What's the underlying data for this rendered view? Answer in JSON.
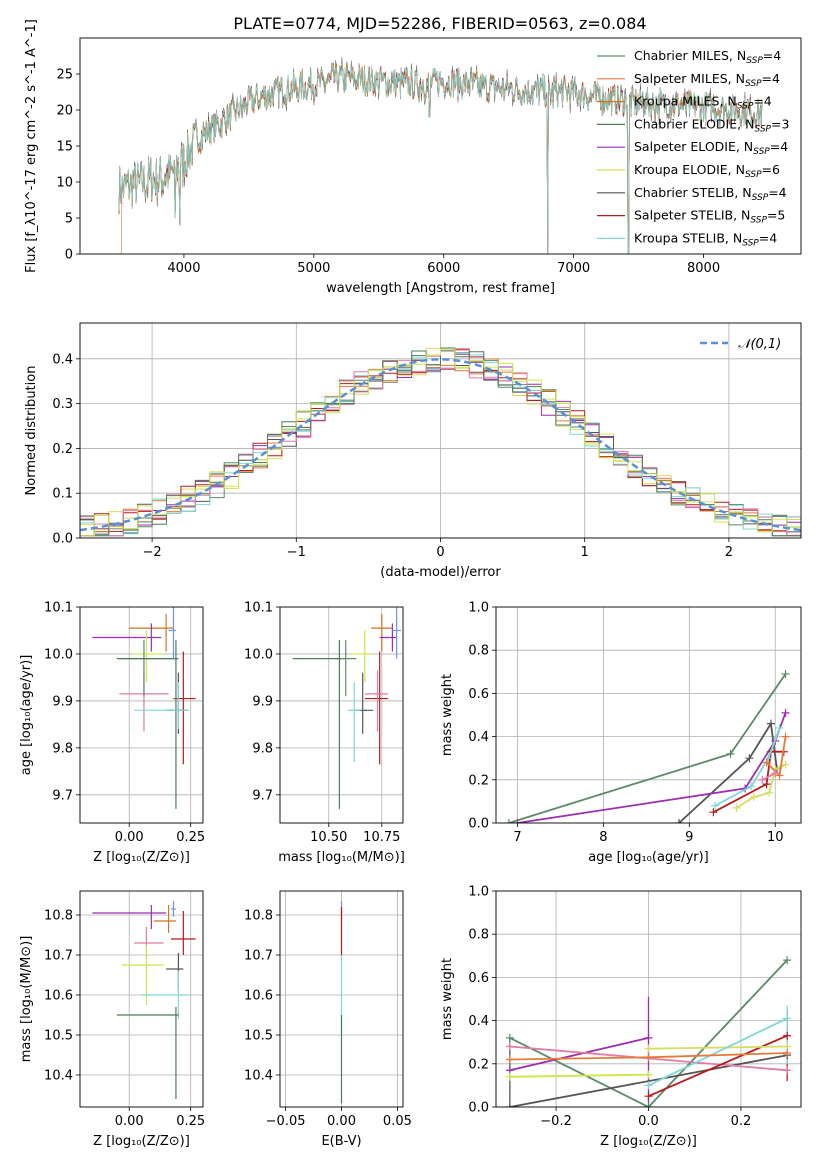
{
  "title": "PLATE=0774, MJD=52286, FIBERID=0563, z=0.084",
  "colors": [
    "#5b8a66",
    "#e57a38",
    "#d1731f",
    "#4e7c59",
    "#9b2fae",
    "#d8dd5f",
    "#555555",
    "#b51c1c",
    "#7fd7d7",
    "#e27aa5",
    "#6f93ea",
    "#c9e84a"
  ],
  "chart_data": [
    {
      "panel": "spectrum",
      "type": "line",
      "xlabel": "wavelength [Angstrom, rest frame]",
      "ylabel": "Flux [f_λ10^-17 erg cm^-2 s^-1 A^-1]",
      "xlim": [
        3200,
        8750
      ],
      "ylim": [
        0,
        30
      ],
      "xticks": [
        "4000",
        "5000",
        "6000",
        "7000",
        "8000"
      ],
      "yticks": [
        "0",
        "5",
        "10",
        "15",
        "20",
        "25"
      ],
      "legend_loc": "upper-right",
      "legend": [
        {
          "label": "Chabrier MILES, N",
          "n": "=4",
          "color": "#5b8a66"
        },
        {
          "label": "Salpeter MILES, N",
          "n": "=4",
          "color": "#e57a38"
        },
        {
          "label": "Kroupa MILES, N",
          "n": "=4",
          "color": "#d1731f"
        },
        {
          "label": "Chabrier ELODIE, N",
          "n": "=3",
          "color": "#4e7c59"
        },
        {
          "label": "Salpeter ELODIE, N",
          "n": "=4",
          "color": "#9b2fae"
        },
        {
          "label": "Kroupa ELODIE, N",
          "n": "=6",
          "color": "#d8dd5f"
        },
        {
          "label": "Chabrier STELIB, N",
          "n": "=4",
          "color": "#555555"
        },
        {
          "label": "Salpeter STELIB, N",
          "n": "=5",
          "color": "#b51c1c"
        },
        {
          "label": "Kroupa STELIB, N",
          "n": "=4",
          "color": "#7fd7d7"
        }
      ],
      "continuum": [
        [
          3500,
          9
        ],
        [
          3700,
          10
        ],
        [
          3900,
          11
        ],
        [
          4000,
          13
        ],
        [
          4100,
          16
        ],
        [
          4300,
          18.5
        ],
        [
          4500,
          21
        ],
        [
          4700,
          22.5
        ],
        [
          5000,
          23.5
        ],
        [
          5200,
          24.5
        ],
        [
          5500,
          24
        ],
        [
          5800,
          23.5
        ],
        [
          6000,
          24
        ],
        [
          6200,
          23.5
        ],
        [
          6500,
          23
        ],
        [
          6800,
          22.5
        ],
        [
          7000,
          22.5
        ],
        [
          7300,
          21.5
        ],
        [
          7500,
          21
        ],
        [
          8000,
          20.5
        ],
        [
          8500,
          19.5
        ]
      ],
      "dips": [
        [
          3933,
          5
        ],
        [
          3968,
          4
        ],
        [
          5890,
          19
        ],
        [
          6800,
          0
        ],
        [
          7420,
          0
        ]
      ]
    },
    {
      "panel": "residual-histogram",
      "type": "histogram",
      "xlabel": "(data-model)/error",
      "ylabel": "Normed distribution",
      "xlim": [
        -2.5,
        2.5
      ],
      "ylim": [
        0,
        0.48
      ],
      "xticks": [
        "−2",
        "−1",
        "0",
        "1",
        "2"
      ],
      "yticks": [
        "0.0",
        "0.1",
        "0.2",
        "0.3",
        "0.4"
      ],
      "bin_width": 0.1,
      "legend": "𝒩(0,1)",
      "gaussian": {
        "mean": 0,
        "sigma": 1
      }
    },
    {
      "panel": "age-vs-Z",
      "type": "scatter",
      "xlabel": "Z [log₁₀(Z/Z⊙)]",
      "ylabel": "age  [log₁₀(age/yr)]",
      "xlim": [
        -0.2,
        0.3
      ],
      "ylim": [
        9.64,
        10.1
      ],
      "xticks": [
        "0.00",
        "0.25"
      ],
      "yticks": [
        "9.7",
        "9.8",
        "9.9",
        "10.0",
        "10.1"
      ],
      "points": [
        {
          "x": 0.15,
          "y": 10.055,
          "xerr": [
            0.15,
            0.03
          ],
          "yerr": [
            0.05,
            0.03
          ],
          "color": "#d1731f"
        },
        {
          "x": 0.22,
          "y": 9.905,
          "xerr": [
            0.04,
            0.05
          ],
          "yerr": [
            0.14,
            0.1
          ],
          "color": "#b51c1c"
        },
        {
          "x": 0.2,
          "y": 9.88,
          "xerr": [
            0.05,
            0.04
          ],
          "yerr": [
            0.05,
            0.08
          ],
          "color": "#555555"
        },
        {
          "x": 0.06,
          "y": 9.915,
          "xerr": [
            0.1,
            0.1
          ],
          "yerr": [
            0.08,
            0.05
          ],
          "color": "#e27aa5"
        },
        {
          "x": 0.09,
          "y": 10.035,
          "xerr": [
            0.24,
            0.04
          ],
          "yerr": [
            0.03,
            0.03
          ],
          "color": "#9b2fae"
        },
        {
          "x": 0.07,
          "y": 10.0,
          "xerr": [
            0.05,
            0.07
          ],
          "yerr": [
            0.06,
            0.05
          ],
          "color": "#c9e84a"
        },
        {
          "x": 0.06,
          "y": 9.99,
          "xerr": [
            0.1,
            0.13
          ],
          "yerr": [
            0.08,
            0.04
          ],
          "color": "#5b8a66"
        },
        {
          "x": 0.19,
          "y": 9.99,
          "xerr": [
            0.24,
            0.01
          ],
          "yerr": [
            0.32,
            0.04
          ],
          "color": "#4e7c59"
        },
        {
          "x": 0.2,
          "y": 9.88,
          "xerr": [
            0.18,
            0.04
          ],
          "yerr": [
            0.04,
            0.06
          ],
          "color": "#7fd7d7"
        },
        {
          "x": 0.18,
          "y": 10.05,
          "xerr": [
            0.02,
            0.01
          ],
          "yerr": [
            0.06,
            0.05
          ],
          "color": "#6f93ea"
        }
      ]
    },
    {
      "panel": "age-vs-mass",
      "type": "scatter",
      "xlabel": "mass [log₁₀(M/M⊙)]",
      "ylabel": "",
      "xlim": [
        10.27,
        10.85
      ],
      "ylim": [
        9.64,
        10.1
      ],
      "xticks": [
        "10.50",
        "10.75"
      ],
      "yticks": [
        "9.7",
        "9.8",
        "9.9",
        "10.0",
        "10.1"
      ],
      "points": [
        {
          "x": 10.75,
          "y": 10.055,
          "xerr": [
            0.05,
            0.05
          ],
          "yerr": [
            0.05,
            0.03
          ],
          "color": "#d1731f"
        },
        {
          "x": 10.74,
          "y": 9.905,
          "xerr": [
            0.07,
            0.04
          ],
          "yerr": [
            0.14,
            0.1
          ],
          "color": "#b51c1c"
        },
        {
          "x": 10.66,
          "y": 9.88,
          "xerr": [
            0.04,
            0.05
          ],
          "yerr": [
            0.05,
            0.08
          ],
          "color": "#555555"
        },
        {
          "x": 10.73,
          "y": 9.915,
          "xerr": [
            0.06,
            0.05
          ],
          "yerr": [
            0.08,
            0.05
          ],
          "color": "#e27aa5"
        },
        {
          "x": 10.8,
          "y": 10.035,
          "xerr": [
            0.06,
            0.02
          ],
          "yerr": [
            0.03,
            0.03
          ],
          "color": "#9b2fae"
        },
        {
          "x": 10.67,
          "y": 10.0,
          "xerr": [
            0.07,
            0.03
          ],
          "yerr": [
            0.06,
            0.05
          ],
          "color": "#c9e84a"
        },
        {
          "x": 10.58,
          "y": 9.99,
          "xerr": [
            0.05,
            0.05
          ],
          "yerr": [
            0.08,
            0.04
          ],
          "color": "#5b8a66"
        },
        {
          "x": 10.55,
          "y": 9.99,
          "xerr": [
            0.22,
            0.01
          ],
          "yerr": [
            0.32,
            0.04
          ],
          "color": "#4e7c59"
        },
        {
          "x": 10.62,
          "y": 9.88,
          "xerr": [
            0.03,
            0.03
          ],
          "yerr": [
            0.11,
            0.06
          ],
          "color": "#7fd7d7"
        },
        {
          "x": 10.82,
          "y": 10.05,
          "xerr": [
            0.02,
            0.02
          ],
          "yerr": [
            0.06,
            0.05
          ],
          "color": "#6f93ea"
        }
      ]
    },
    {
      "panel": "massweight-vs-age",
      "type": "line",
      "xlabel": "age  [log₁₀(age/yr)]",
      "ylabel": "mass weight",
      "xlim": [
        6.75,
        10.3
      ],
      "ylim": [
        0,
        1
      ],
      "xticks": [
        "7",
        "8",
        "9",
        "10"
      ],
      "yticks": [
        "0.0",
        "0.2",
        "0.4",
        "0.6",
        "0.8",
        "1.0"
      ],
      "series": [
        {
          "color": "#5b8a66",
          "points": [
            [
              6.9,
              0
            ],
            [
              9.48,
              0.32
            ],
            [
              10.12,
              0.69
            ]
          ]
        },
        {
          "color": "#555555",
          "points": [
            [
              8.88,
              0
            ],
            [
              9.7,
              0.3
            ],
            [
              9.95,
              0.46
            ],
            [
              10.02,
              0.25
            ]
          ]
        },
        {
          "color": "#9b2fae",
          "points": [
            [
              7.0,
              0
            ],
            [
              9.65,
              0.16
            ],
            [
              10.0,
              0.38
            ],
            [
              10.12,
              0.51
            ]
          ]
        },
        {
          "color": "#b51c1c",
          "points": [
            [
              9.28,
              0.05
            ],
            [
              9.9,
              0.18
            ],
            [
              9.95,
              0.33
            ],
            [
              10.1,
              0.33
            ]
          ]
        },
        {
          "color": "#d8dd5f",
          "points": [
            [
              9.55,
              0.07
            ],
            [
              9.75,
              0.12
            ],
            [
              9.93,
              0.14
            ],
            [
              10.0,
              0.25
            ],
            [
              10.12,
              0.27
            ]
          ]
        },
        {
          "color": "#7fd7d7",
          "points": [
            [
              9.3,
              0.08
            ],
            [
              9.72,
              0.17
            ],
            [
              9.92,
              0.3
            ],
            [
              10.05,
              0.44
            ]
          ]
        },
        {
          "color": "#e57a38",
          "points": [
            [
              9.9,
              0.28
            ],
            [
              10.05,
              0.22
            ],
            [
              10.12,
              0.4
            ]
          ]
        },
        {
          "color": "#e27aa5",
          "points": [
            [
              9.85,
              0.2
            ],
            [
              10.0,
              0.23
            ]
          ]
        }
      ]
    },
    {
      "panel": "mass-vs-Z",
      "type": "scatter",
      "xlabel": "Z [log₁₀(Z/Z⊙)]",
      "ylabel": "mass [log₁₀(M/M⊙)]",
      "xlim": [
        -0.2,
        0.3
      ],
      "ylim": [
        10.32,
        10.86
      ],
      "xticks": [
        "0.00",
        "0.25"
      ],
      "yticks": [
        "10.4",
        "10.5",
        "10.6",
        "10.7",
        "10.8"
      ],
      "points": [
        {
          "x": 0.09,
          "y": 10.805,
          "xerr": [
            0.24,
            0.06
          ],
          "yerr": [
            0.04,
            0.02
          ],
          "color": "#9b2fae"
        },
        {
          "x": 0.18,
          "y": 10.815,
          "xerr": [
            0.01,
            0.01
          ],
          "yerr": [
            0.02,
            0.02
          ],
          "color": "#6f93ea"
        },
        {
          "x": 0.16,
          "y": 10.785,
          "xerr": [
            0.06,
            0.03
          ],
          "yerr": [
            0.03,
            0.04
          ],
          "color": "#d1731f"
        },
        {
          "x": 0.22,
          "y": 10.74,
          "xerr": [
            0.05,
            0.05
          ],
          "yerr": [
            0.04,
            0.07
          ],
          "color": "#b51c1c"
        },
        {
          "x": 0.07,
          "y": 10.73,
          "xerr": [
            0.05,
            0.07
          ],
          "yerr": [
            0.04,
            0.04
          ],
          "color": "#e27aa5"
        },
        {
          "x": 0.07,
          "y": 10.675,
          "xerr": [
            0.1,
            0.07
          ],
          "yerr": [
            0.1,
            0.05
          ],
          "color": "#c9e84a"
        },
        {
          "x": 0.2,
          "y": 10.665,
          "xerr": [
            0.05,
            0.02
          ],
          "yerr": [
            0.05,
            0.04
          ],
          "color": "#555555"
        },
        {
          "x": 0.2,
          "y": 10.6,
          "xerr": [
            0.15,
            0.04
          ],
          "yerr": [
            0.06,
            0.06
          ],
          "color": "#7fd7d7"
        },
        {
          "x": 0.19,
          "y": 10.55,
          "xerr": [
            0.24,
            0.01
          ],
          "yerr": [
            0.21,
            0.02
          ],
          "color": "#4e7c59"
        }
      ]
    },
    {
      "panel": "mass-vs-EBV",
      "type": "scatter",
      "xlabel": "E(B-V)",
      "ylabel": "",
      "xlim": [
        -0.055,
        0.055
      ],
      "ylim": [
        10.32,
        10.86
      ],
      "xticks": [
        "−0.05",
        "0.00",
        "0.05"
      ],
      "yticks": [
        "10.4",
        "10.5",
        "10.6",
        "10.7",
        "10.8"
      ],
      "points": [
        {
          "x": 0,
          "y": 10.815,
          "xerr": [
            0,
            0
          ],
          "yerr": [
            0.03,
            0.02
          ],
          "color": "#6f93ea"
        },
        {
          "x": 0,
          "y": 10.76,
          "xerr": [
            0,
            0
          ],
          "yerr": [
            0.06,
            0.06
          ],
          "color": "#b51c1c"
        },
        {
          "x": 0,
          "y": 10.6,
          "xerr": [
            0,
            0
          ],
          "yerr": [
            0.1,
            0.1
          ],
          "color": "#7fd7d7"
        },
        {
          "x": 0,
          "y": 10.45,
          "xerr": [
            0,
            0
          ],
          "yerr": [
            0.12,
            0.1
          ],
          "color": "#4e7c59"
        }
      ]
    },
    {
      "panel": "massweight-vs-Z",
      "type": "line",
      "xlabel": "Z [log₁₀(Z/Z⊙)]",
      "ylabel": "mass weight",
      "xlim": [
        -0.33,
        0.33
      ],
      "ylim": [
        0,
        1
      ],
      "xticks": [
        "−0.2",
        "0.0",
        "0.2"
      ],
      "yticks": [
        "0.0",
        "0.2",
        "0.4",
        "0.6",
        "0.8",
        "1.0"
      ],
      "series": [
        {
          "color": "#5b8a66",
          "points": [
            [
              -0.3,
              0.32
            ],
            [
              0.0,
              0.0
            ],
            [
              0.3,
              0.68
            ]
          ]
        },
        {
          "color": "#555555",
          "points": [
            [
              -0.3,
              0.0
            ],
            [
              0.3,
              0.24
            ]
          ]
        },
        {
          "color": "#9b2fae",
          "points": [
            [
              -0.3,
              0.17
            ],
            [
              0.0,
              0.32
            ]
          ]
        },
        {
          "color": "#e27aa5",
          "points": [
            [
              -0.3,
              0.28
            ],
            [
              0.3,
              0.17
            ]
          ]
        },
        {
          "color": "#b51c1c",
          "points": [
            [
              0.0,
              0.05
            ],
            [
              0.3,
              0.33
            ]
          ]
        },
        {
          "color": "#c9e84a",
          "points": [
            [
              -0.3,
              0.14
            ],
            [
              0.0,
              0.15
            ]
          ]
        },
        {
          "color": "#d8dd5f",
          "points": [
            [
              0.0,
              0.27
            ],
            [
              0.3,
              0.28
            ]
          ]
        },
        {
          "color": "#7fd7d7",
          "points": [
            [
              0.0,
              0.1
            ],
            [
              0.3,
              0.41
            ]
          ]
        },
        {
          "color": "#e57a38",
          "points": [
            [
              -0.3,
              0.22
            ],
            [
              0.0,
              0.23
            ],
            [
              0.3,
              0.25
            ]
          ]
        }
      ],
      "vertical_errors": [
        {
          "x": 0.0,
          "y0": 0.0,
          "y1": 0.51,
          "color": "#9b2fae"
        },
        {
          "x": 0.3,
          "y0": 0.12,
          "y1": 0.45,
          "color": "#b51c1c"
        },
        {
          "x": 0.3,
          "y0": 0.2,
          "y1": 0.47,
          "color": "#7fd7d7"
        },
        {
          "x": -0.3,
          "y0": 0.0,
          "y1": 0.32,
          "color": "#555555"
        }
      ]
    }
  ]
}
